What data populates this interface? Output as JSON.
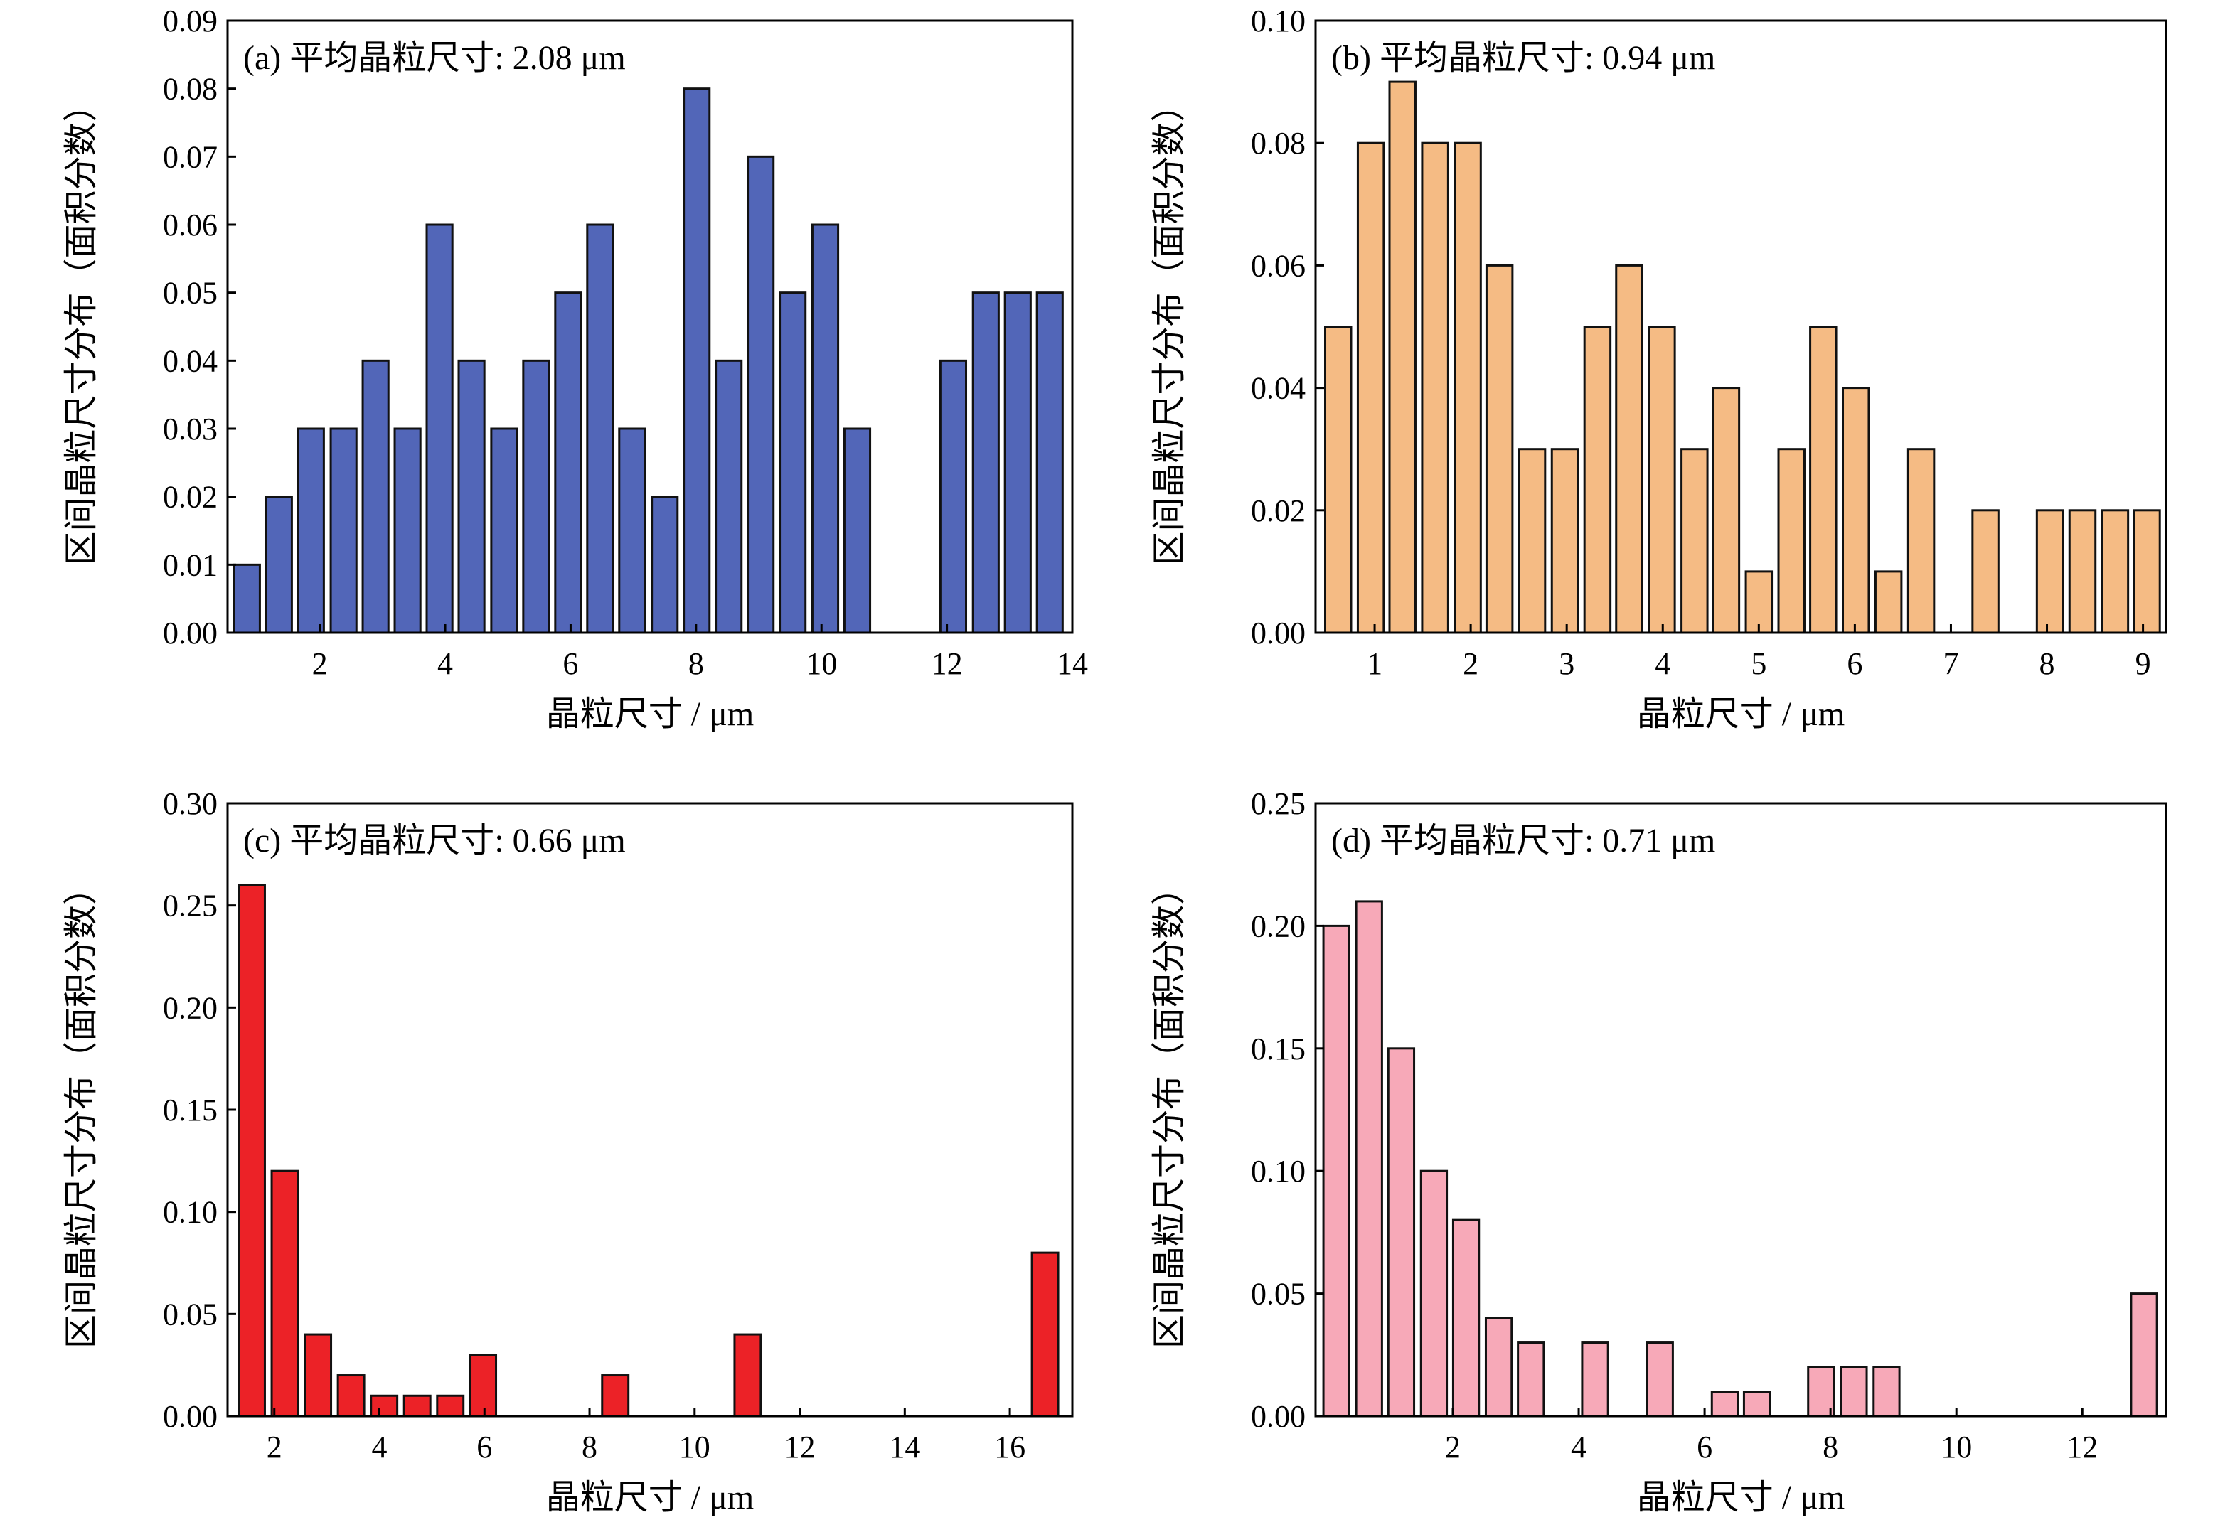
{
  "chart_data": [
    {
      "type": "bar",
      "panel": "a",
      "annotation": "(a) 平均晶粒尺寸: 2.08 μm",
      "xlabel": "晶粒尺寸 / μm",
      "ylabel": "区间晶粒尺寸分布（面积分数）",
      "color": "#5266b8",
      "xlim": [
        0.53,
        14.0
      ],
      "ylim": [
        0,
        0.09
      ],
      "xticks": [
        2,
        4,
        6,
        8,
        10,
        12,
        14
      ],
      "yticks": [
        0.0,
        0.01,
        0.02,
        0.03,
        0.04,
        0.05,
        0.06,
        0.07,
        0.08,
        0.09
      ],
      "ytick_labels": [
        "0.00",
        "0.01",
        "0.02",
        "0.03",
        "0.04",
        "0.05",
        "0.06",
        "0.07",
        "0.08",
        "0.09"
      ],
      "bar_width": 0.41,
      "x": [
        0.84,
        1.35,
        1.86,
        2.38,
        2.89,
        3.4,
        3.91,
        4.42,
        4.94,
        5.45,
        5.96,
        6.47,
        6.98,
        7.5,
        8.01,
        8.52,
        9.03,
        9.54,
        10.06,
        10.57,
        12.1,
        12.62,
        13.13,
        13.64
      ],
      "values": [
        0.01,
        0.02,
        0.03,
        0.03,
        0.04,
        0.03,
        0.06,
        0.04,
        0.03,
        0.04,
        0.05,
        0.06,
        0.03,
        0.02,
        0.08,
        0.04,
        0.07,
        0.05,
        0.06,
        0.03,
        0.04,
        0.05,
        0.05,
        0.05
      ],
      "grid": false
    },
    {
      "type": "bar",
      "panel": "b",
      "annotation": "(b) 平均晶粒尺寸: 0.94 μm",
      "xlabel": "晶粒尺寸 / μm",
      "ylabel": "区间晶粒尺寸分布（面积分数）",
      "color": "#f5bb84",
      "xlim": [
        0.385,
        9.24
      ],
      "ylim": [
        0,
        0.1
      ],
      "xticks": [
        1,
        2,
        3,
        4,
        5,
        6,
        7,
        8,
        9
      ],
      "yticks": [
        0.0,
        0.02,
        0.04,
        0.06,
        0.08,
        0.1
      ],
      "ytick_labels": [
        "0.00",
        "0.02",
        "0.04",
        "0.06",
        "0.08",
        "0.10"
      ],
      "bar_width": 0.27,
      "x": [
        0.62,
        0.96,
        1.29,
        1.63,
        1.97,
        2.3,
        2.64,
        2.98,
        3.32,
        3.65,
        3.99,
        4.33,
        4.66,
        5.0,
        5.34,
        5.67,
        6.01,
        6.35,
        6.69,
        7.36,
        8.03,
        8.37,
        8.71,
        9.04
      ],
      "values": [
        0.05,
        0.08,
        0.09,
        0.08,
        0.08,
        0.06,
        0.03,
        0.03,
        0.05,
        0.06,
        0.05,
        0.03,
        0.04,
        0.01,
        0.03,
        0.05,
        0.04,
        0.01,
        0.03,
        0.02,
        0.02,
        0.02,
        0.02,
        0.02
      ],
      "grid": false
    },
    {
      "type": "bar",
      "panel": "c",
      "annotation": "(c) 平均晶粒尺寸: 0.66 μm",
      "xlabel": "晶粒尺寸 / μm",
      "ylabel": "区间晶粒尺寸分布（面积分数）",
      "color": "#ec2227",
      "xlim": [
        1.11,
        17.19
      ],
      "ylim": [
        0,
        0.3
      ],
      "xticks": [
        2,
        4,
        6,
        8,
        10,
        12,
        14,
        16
      ],
      "yticks": [
        0.0,
        0.05,
        0.1,
        0.15,
        0.2,
        0.25,
        0.3
      ],
      "ytick_labels": [
        "0.00",
        "0.05",
        "0.10",
        "0.15",
        "0.20",
        "0.25",
        "0.30"
      ],
      "bar_width": 0.5,
      "x": [
        1.57,
        2.2,
        2.83,
        3.46,
        4.09,
        4.72,
        5.35,
        5.97,
        8.49,
        11.01,
        16.67
      ],
      "values": [
        0.26,
        0.12,
        0.04,
        0.02,
        0.01,
        0.01,
        0.01,
        0.03,
        0.02,
        0.04,
        0.08
      ],
      "grid": false
    },
    {
      "type": "bar",
      "panel": "d",
      "annotation": "(d) 平均晶粒尺寸: 0.71 μm",
      "xlabel": "晶粒尺寸 / μm",
      "ylabel": "区间晶粒尺寸分布（面积分数）",
      "color": "#f7a9b8",
      "xlim": [
        -0.18,
        13.33
      ],
      "ylim": [
        0,
        0.25
      ],
      "xticks": [
        2,
        4,
        6,
        8,
        10,
        12
      ],
      "yticks": [
        0.0,
        0.05,
        0.1,
        0.15,
        0.2,
        0.25
      ],
      "ytick_labels": [
        "0.00",
        "0.05",
        "0.10",
        "0.15",
        "0.20",
        "0.25"
      ],
      "bar_width": 0.41,
      "x": [
        0.15,
        0.67,
        1.18,
        1.7,
        2.21,
        2.73,
        3.24,
        4.26,
        5.29,
        6.32,
        6.83,
        7.85,
        8.37,
        8.89,
        12.98
      ],
      "values": [
        0.2,
        0.21,
        0.15,
        0.1,
        0.08,
        0.04,
        0.03,
        0.03,
        0.03,
        0.01,
        0.01,
        0.02,
        0.02,
        0.02,
        0.05
      ],
      "grid": false
    }
  ]
}
